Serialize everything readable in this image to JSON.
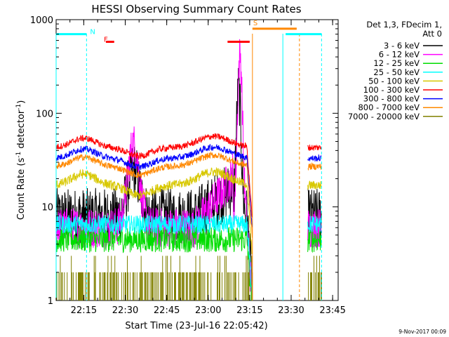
{
  "chart_data": {
    "type": "line",
    "title": "HESSI Observing Summary Count Rates",
    "xlabel": "Start Time (23-Jul-16 22:05:42)",
    "ylabel_main": "Count Rate (s",
    "ylabel_sup1": "-1",
    "ylabel_mid": " detector",
    "ylabel_sup2": "-1",
    "ylabel_end": ")",
    "yscale": "log",
    "ylim": [
      1,
      1000
    ],
    "xlim_minutes": [
      0,
      102
    ],
    "x_ticks": [
      {
        "t": 10,
        "label": "22:15"
      },
      {
        "t": 25,
        "label": "22:30"
      },
      {
        "t": 40,
        "label": "22:45"
      },
      {
        "t": 55,
        "label": "23:00"
      },
      {
        "t": 70,
        "label": "23:15"
      },
      {
        "t": 85,
        "label": "23:30"
      },
      {
        "t": 100,
        "label": "23:45"
      }
    ],
    "y_ticks": [
      {
        "v": 1,
        "label": "1"
      },
      {
        "v": 10,
        "label": "10"
      },
      {
        "v": 100,
        "label": "100"
      },
      {
        "v": 1000,
        "label": "1000"
      }
    ],
    "legend_header": [
      "Det 1,3, FDecim 1,",
      "Att 0"
    ],
    "legend_position": "right",
    "series": [
      {
        "name": "3 - 6 keV",
        "color": "#000000",
        "level": 8,
        "noise": 0.3,
        "peaks": [
          {
            "t": 28,
            "w": 3,
            "a": 0.5
          },
          {
            "t": 66,
            "w": 1.3,
            "a": 1.35
          }
        ],
        "ramp": [
          {
            "t0": 50,
            "t1": 64,
            "a": 0.3
          }
        ]
      },
      {
        "name": "6 - 12 keV",
        "color": "#ff00ff",
        "level": 6,
        "noise": 0.22,
        "peaks": [
          {
            "t": 28,
            "w": 3,
            "a": 0.9
          },
          {
            "t": 66.5,
            "w": 1.4,
            "a": 1.85
          }
        ],
        "ramp": [
          {
            "t0": 50,
            "t1": 64,
            "a": 0.55
          }
        ]
      },
      {
        "name": "12 - 25 keV",
        "color": "#00dd00",
        "level": 4.5,
        "noise": 0.14,
        "peaks": [],
        "ramp": []
      },
      {
        "name": "25 - 50 keV",
        "color": "#00ffff",
        "level": 6.5,
        "noise": 0.1,
        "peaks": [],
        "ramp": []
      },
      {
        "name": "50 - 100 keV",
        "color": "#d8c800",
        "level": 17,
        "noise": 0.05,
        "peaks": [],
        "ramp": [],
        "bump": 0.12
      },
      {
        "name": "100 - 300 keV",
        "color": "#ff0000",
        "level": 43,
        "noise": 0.035,
        "peaks": [],
        "ramp": [],
        "bump": 0.1
      },
      {
        "name": "300 - 800 keV",
        "color": "#0000ff",
        "level": 33,
        "noise": 0.035,
        "peaks": [],
        "ramp": [],
        "bump": 0.1
      },
      {
        "name": "800 - 7000 keV",
        "color": "#ff8800",
        "level": 27,
        "noise": 0.035,
        "peaks": [],
        "ramp": [],
        "bump": 0.1
      },
      {
        "name": "7000 - 20000 keV",
        "color": "#808000",
        "level": 1.5,
        "noise": 0.3,
        "peaks": [],
        "ramp": [],
        "bars": true
      }
    ],
    "segments": [
      [
        0,
        71
      ],
      [
        91,
        96
      ]
    ],
    "flags": [
      {
        "letter": "N",
        "color": "#00ffff",
        "t": 11,
        "y": 700,
        "bar": [
          0,
          11
        ]
      },
      {
        "letter": "F",
        "color": "#ff0000",
        "t": 16,
        "y": 580,
        "bar": [
          18,
          21
        ]
      },
      {
        "letter": "F",
        "color": "#ff0000",
        "t": 66,
        "y": 580,
        "bar": [
          62,
          70
        ],
        "hide_letter": true
      },
      {
        "letter": "S",
        "color": "#ff8800",
        "t": 70,
        "y": 800,
        "bar": [
          71,
          87
        ]
      },
      {
        "letter": "",
        "color": "#00ffff",
        "t": 96,
        "y": 700,
        "bar": [
          83,
          96
        ]
      }
    ],
    "vlines": [
      {
        "t": 0,
        "color": "#00ffff",
        "dash": false
      },
      {
        "t": 11,
        "color": "#00ffff",
        "dash": true
      },
      {
        "t": 71,
        "color": "#ff8800",
        "dash": false
      },
      {
        "t": 82,
        "color": "#00ffff",
        "dash": false
      },
      {
        "t": 88,
        "color": "#ff8800",
        "dash": true
      },
      {
        "t": 96,
        "color": "#00ffff",
        "dash": true
      }
    ],
    "grid": false
  },
  "footer_timestamp": "9-Nov-2017 00:09"
}
